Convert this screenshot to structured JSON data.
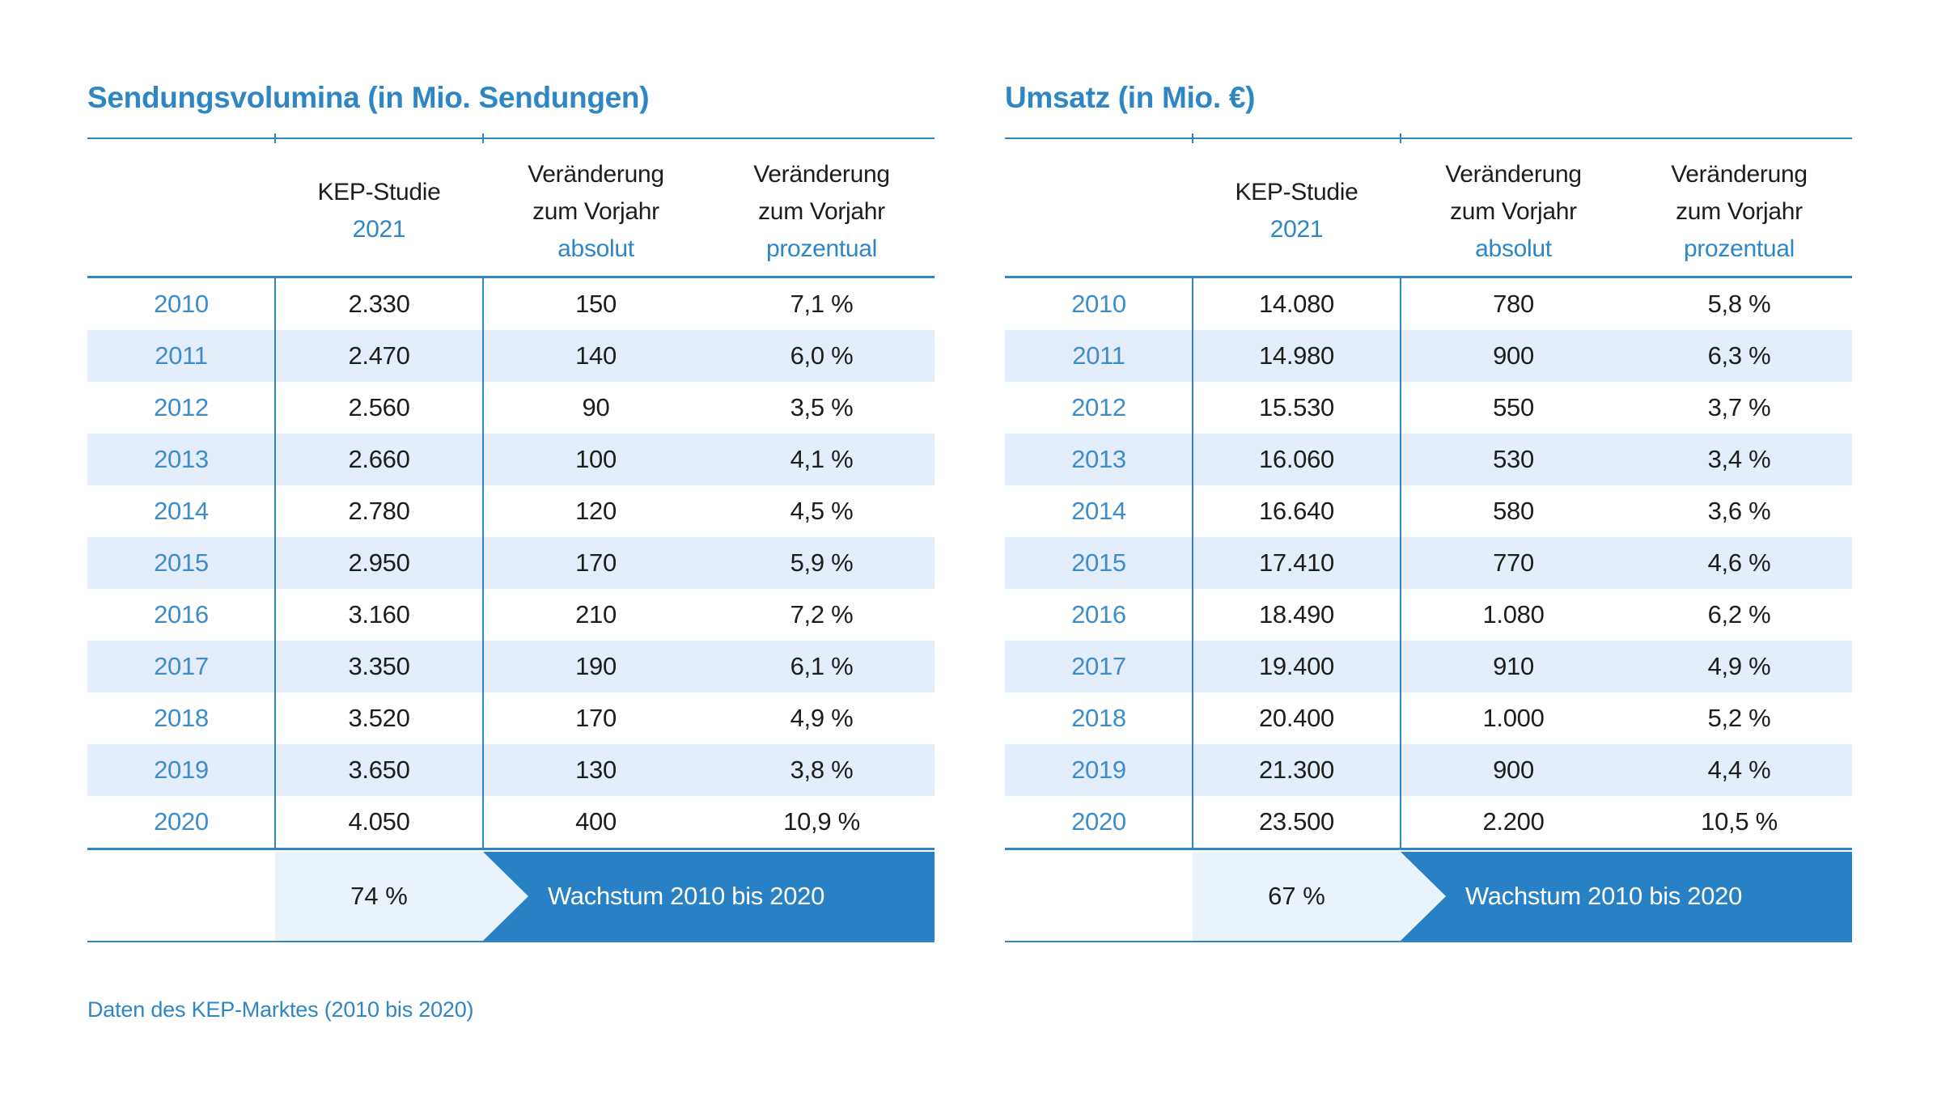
{
  "colors": {
    "accent": "#2e86c5",
    "band_blue": "#2881c4",
    "row_stripe": "#e4eefa",
    "growth_box": "#eaf3fc",
    "text_dark": "#1d1d1b",
    "year_blue": "#3e8cc8"
  },
  "chart_data": [
    {
      "type": "table",
      "title": "Sendungsvolumina (in Mio. Sendungen)",
      "column_headers": {
        "study_line1": "KEP-Studie",
        "study_line2": "2021",
        "change_line1": "Veränderung",
        "change_line2": "zum Vorjahr",
        "col_absolute": "absolut",
        "col_percent": "prozentual"
      },
      "rows": [
        [
          "2010",
          "2.330",
          "150",
          "7,1 %"
        ],
        [
          "2011",
          "2.470",
          "140",
          "6,0 %"
        ],
        [
          "2012",
          "2.560",
          "90",
          "3,5 %"
        ],
        [
          "2013",
          "2.660",
          "100",
          "4,1 %"
        ],
        [
          "2014",
          "2.780",
          "120",
          "4,5 %"
        ],
        [
          "2015",
          "2.950",
          "170",
          "5,9 %"
        ],
        [
          "2016",
          "3.160",
          "210",
          "7,2 %"
        ],
        [
          "2017",
          "3.350",
          "190",
          "6,1 %"
        ],
        [
          "2018",
          "3.520",
          "170",
          "4,9 %"
        ],
        [
          "2019",
          "3.650",
          "130",
          "3,8 %"
        ],
        [
          "2020",
          "4.050",
          "400",
          "10,9 %"
        ]
      ],
      "footer": {
        "growth_value": "74 %",
        "growth_label": "Wachstum 2010 bis 2020"
      }
    },
    {
      "type": "table",
      "title": "Umsatz (in Mio. €)",
      "column_headers": {
        "study_line1": "KEP-Studie",
        "study_line2": "2021",
        "change_line1": "Veränderung",
        "change_line2": "zum Vorjahr",
        "col_absolute": "absolut",
        "col_percent": "prozentual"
      },
      "rows": [
        [
          "2010",
          "14.080",
          "780",
          "5,8 %"
        ],
        [
          "2011",
          "14.980",
          "900",
          "6,3 %"
        ],
        [
          "2012",
          "15.530",
          "550",
          "3,7 %"
        ],
        [
          "2013",
          "16.060",
          "530",
          "3,4 %"
        ],
        [
          "2014",
          "16.640",
          "580",
          "3,6 %"
        ],
        [
          "2015",
          "17.410",
          "770",
          "4,6 %"
        ],
        [
          "2016",
          "18.490",
          "1.080",
          "6,2 %"
        ],
        [
          "2017",
          "19.400",
          "910",
          "4,9 %"
        ],
        [
          "2018",
          "20.400",
          "1.000",
          "5,2 %"
        ],
        [
          "2019",
          "21.300",
          "900",
          "4,4 %"
        ],
        [
          "2020",
          "23.500",
          "2.200",
          "10,5 %"
        ]
      ],
      "footer": {
        "growth_value": "67 %",
        "growth_label": "Wachstum 2010 bis 2020"
      }
    }
  ],
  "caption": "Daten des KEP-Marktes (2010 bis 2020)"
}
